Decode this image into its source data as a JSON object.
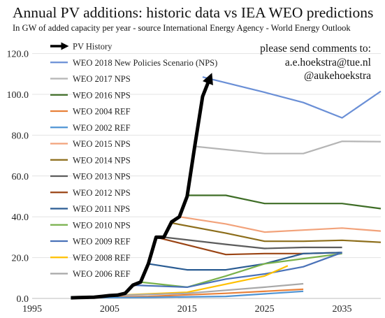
{
  "header": {
    "title": "Annual PV additions: historic data vs IEA WEO predictions",
    "subtitle": "In GW of added capacity per year - source International Energy Agency - World Energy Outlook"
  },
  "chart_data": {
    "type": "line",
    "title": "Annual PV additions: historic data vs IEA WEO predictions",
    "subtitle": "In GW of added capacity per year - source International Energy Agency - World Energy Outlook",
    "xlabel": "",
    "ylabel": "",
    "xlim": [
      1995,
      2040
    ],
    "ylim": [
      0,
      125
    ],
    "x_ticks": [
      "1995",
      "2005",
      "2015",
      "2025",
      "2035"
    ],
    "x_tick_values": [
      1995,
      2005,
      2015,
      2025,
      2035
    ],
    "y_ticks": [
      "0.0",
      "20.0",
      "40.0",
      "60.0",
      "80.0",
      "100.0",
      "120.0"
    ],
    "y_tick_values": [
      0,
      20,
      40,
      60,
      80,
      100,
      120
    ],
    "grid": "horizontal",
    "legend_position": "top-left",
    "annotation": [
      "please send comments to:",
      "a.e.hoekstra@tue.nl",
      "@aukehoekstra"
    ],
    "series": [
      {
        "name": "PV History",
        "color": "#000000",
        "arrow": true,
        "x": [
          2000,
          2001,
          2002,
          2003,
          2004,
          2005,
          2006,
          2007,
          2008,
          2009,
          2010,
          2011,
          2012,
          2013,
          2014,
          2015,
          2016,
          2017,
          2018
        ],
        "y": [
          0.3,
          0.4,
          0.5,
          0.6,
          1.0,
          1.4,
          1.6,
          2.5,
          6.5,
          8.0,
          17.0,
          30.0,
          30.0,
          37.5,
          40.0,
          50.0,
          75.0,
          99.0,
          108.5
        ]
      },
      {
        "name": "WEO 2018 New Policies Scenario (NPS)",
        "color": "#6a8fd6",
        "x": [
          2017,
          2025,
          2030,
          2035,
          2040
        ],
        "y": [
          108.5,
          101,
          96,
          88.5,
          101.5
        ]
      },
      {
        "name": "WEO 2017 NPS",
        "color": "#b5b5b5",
        "x": [
          2016,
          2025,
          2030,
          2035,
          2040
        ],
        "y": [
          74.5,
          71,
          71,
          77,
          76.8
        ]
      },
      {
        "name": "WEO 2016 NPS",
        "color": "#3e6d26",
        "x": [
          2015,
          2020,
          2025,
          2030,
          2035,
          2040
        ],
        "y": [
          50.5,
          50.5,
          46.5,
          46.5,
          46.5,
          44
        ]
      },
      {
        "name": "WEO 2004 REF",
        "color": "#e8813a",
        "x": [
          2002,
          2010,
          2020,
          2030
        ],
        "y": [
          0.5,
          1.0,
          2.5,
          4.5
        ]
      },
      {
        "name": "WEO 2002 REF",
        "color": "#4f94d4",
        "x": [
          2000,
          2010,
          2020,
          2030
        ],
        "y": [
          0.3,
          0.5,
          1.0,
          3.5
        ]
      },
      {
        "name": "WEO 2015 NPS",
        "color": "#f2a27a",
        "x": [
          2014,
          2020,
          2025,
          2030,
          2035,
          2040
        ],
        "y": [
          40,
          36.5,
          32.5,
          33.5,
          34.5,
          33
        ]
      },
      {
        "name": "WEO 2014 NPS",
        "color": "#8c6d1a",
        "x": [
          2013,
          2020,
          2025,
          2030,
          2035,
          2040
        ],
        "y": [
          37,
          32,
          28,
          28,
          28.5,
          27.5
        ]
      },
      {
        "name": "WEO 2013 NPS",
        "color": "#5c5c5c",
        "x": [
          2012,
          2020,
          2025,
          2030,
          2035
        ],
        "y": [
          30,
          26.5,
          24.5,
          25,
          25
        ]
      },
      {
        "name": "WEO 2012 NPS",
        "color": "#9a4414",
        "x": [
          2011,
          2020,
          2025,
          2030,
          2035
        ],
        "y": [
          30,
          21.5,
          22,
          22,
          22.5
        ]
      },
      {
        "name": "WEO 2011 NPS",
        "color": "#2a5c93",
        "x": [
          2010,
          2015,
          2020,
          2025,
          2030,
          2035
        ],
        "y": [
          17,
          14,
          14,
          17,
          22,
          22.5
        ]
      },
      {
        "name": "WEO 2010 NPS",
        "color": "#79b14b",
        "x": [
          2009,
          2015,
          2020,
          2025,
          2030,
          2035
        ],
        "y": [
          8,
          5.5,
          11,
          17,
          19.5,
          22
        ]
      },
      {
        "name": "WEO 2009 REF",
        "color": "#4a72b8",
        "x": [
          2008,
          2015,
          2020,
          2025,
          2030,
          2035
        ],
        "y": [
          6.5,
          5.5,
          9.5,
          12,
          15.5,
          22.5
        ]
      },
      {
        "name": "WEO 2008 REF",
        "color": "#ffc000",
        "x": [
          2006,
          2015,
          2020,
          2025,
          2028
        ],
        "y": [
          1.6,
          3.0,
          7.0,
          11,
          16
        ]
      },
      {
        "name": "WEO 2006 REF",
        "color": "#a8a8a8",
        "x": [
          2005,
          2015,
          2020,
          2025,
          2030
        ],
        "y": [
          1.4,
          2.5,
          4.0,
          5.5,
          7.2
        ]
      }
    ]
  }
}
